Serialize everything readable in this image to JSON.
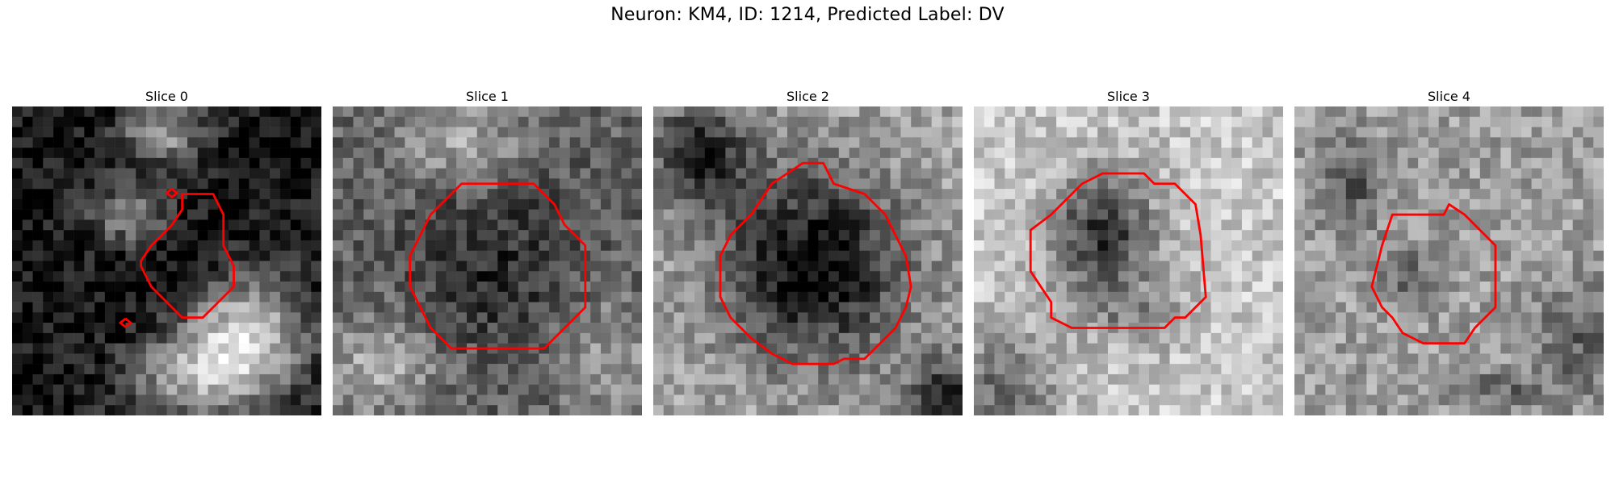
{
  "figure": {
    "title": "Neuron: KM4, ID: 1214, Predicted Label: DV"
  },
  "colors": {
    "contour": "#ff0000",
    "background": "#ffffff"
  },
  "panels": [
    {
      "title": "Slice 0"
    },
    {
      "title": "Slice 1"
    },
    {
      "title": "Slice 2"
    },
    {
      "title": "Slice 3"
    },
    {
      "title": "Slice 4"
    }
  ]
}
